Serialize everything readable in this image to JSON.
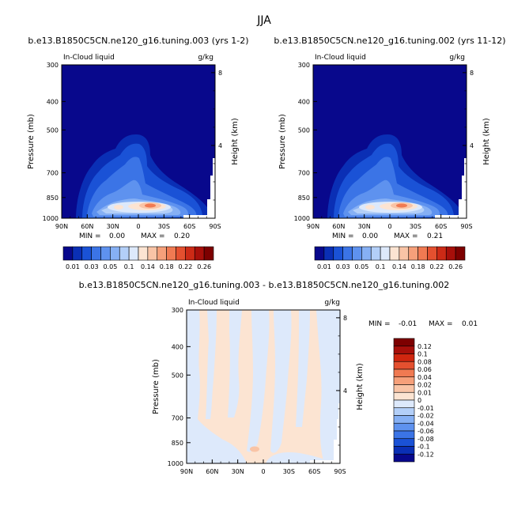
{
  "figure": {
    "season": "JJA"
  },
  "chart_data": [
    {
      "type": "heatmap",
      "id": "panel-a",
      "title": "b.e13.B1850C5CN.ne120_g16.tuning.003 (yrs 1-2)",
      "left_label": "In-Cloud liquid",
      "right_label": "g/kg",
      "ylabel": "Pressure (mb)",
      "ylabel_right": "Height (km)",
      "x_ticks": [
        "90N",
        "60N",
        "30N",
        "0",
        "30S",
        "60S",
        "90S"
      ],
      "y_ticks": [
        "300",
        "400",
        "500",
        "700",
        "850",
        "1000"
      ],
      "y_ticks_right": [
        "8",
        "4"
      ],
      "min_label": "MIN =",
      "min_value": "0.00",
      "max_label": "MAX =",
      "max_value": "0.20",
      "colorbar_labels": [
        "0.01",
        "0.03",
        "0.05",
        "0.1",
        "0.14",
        "0.18",
        "0.22",
        "0.26"
      ],
      "colors": [
        "#08088c",
        "#0a2fb5",
        "#1a52d6",
        "#3b74e6",
        "#5e92ef",
        "#86b0f4",
        "#b3cff8",
        "#dde9fb",
        "#fce4d2",
        "#f9c4a6",
        "#f6a07a",
        "#f07a52",
        "#e4502f",
        "#cc2a16",
        "#a70f0a",
        "#7d0000"
      ]
    },
    {
      "type": "heatmap",
      "id": "panel-b",
      "title": "b.e13.B1850C5CN.ne120_g16.tuning.002 (yrs 11-12)",
      "left_label": "In-Cloud liquid",
      "right_label": "g/kg",
      "ylabel": "Pressure (mb)",
      "ylabel_right": "Height (km)",
      "x_ticks": [
        "90N",
        "60N",
        "30N",
        "0",
        "30S",
        "60S",
        "90S"
      ],
      "y_ticks": [
        "300",
        "400",
        "500",
        "700",
        "850",
        "1000"
      ],
      "y_ticks_right": [
        "8",
        "4"
      ],
      "min_label": "MIN =",
      "min_value": "0.00",
      "max_label": "MAX =",
      "max_value": "0.21",
      "colorbar_labels": [
        "0.01",
        "0.03",
        "0.05",
        "0.1",
        "0.14",
        "0.18",
        "0.22",
        "0.26"
      ]
    },
    {
      "type": "heatmap",
      "id": "panel-diff",
      "title": "b.e13.B1850C5CN.ne120_g16.tuning.003 - b.e13.B1850C5CN.ne120_g16.tuning.002",
      "left_label": "In-Cloud liquid",
      "right_label": "g/kg",
      "ylabel": "Pressure (mb)",
      "ylabel_right": "Height (km)",
      "x_ticks": [
        "90N",
        "60N",
        "30N",
        "0",
        "30S",
        "60S",
        "90S"
      ],
      "y_ticks": [
        "300",
        "400",
        "500",
        "700",
        "850",
        "1000"
      ],
      "y_ticks_right": [
        "8",
        "4"
      ],
      "min_label": "MIN =",
      "min_value": "-0.01",
      "max_label": "MAX =",
      "max_value": "0.01",
      "colorbar_labels": [
        "0.12",
        "0.1",
        "0.08",
        "0.06",
        "0.04",
        "0.02",
        "0.01",
        "0",
        "-0.01",
        "-0.02",
        "-0.04",
        "-0.06",
        "-0.08",
        "-0.1",
        "-0.12"
      ],
      "colors": [
        "#7d0000",
        "#a70f0a",
        "#d0260f",
        "#e4502f",
        "#f07a52",
        "#f6a07a",
        "#f9c4a6",
        "#fce4d2",
        "#dde9fb",
        "#b3cff8",
        "#86b0f4",
        "#5e92ef",
        "#3b74e6",
        "#1a52d6",
        "#0a2fb5",
        "#08088c"
      ]
    }
  ]
}
